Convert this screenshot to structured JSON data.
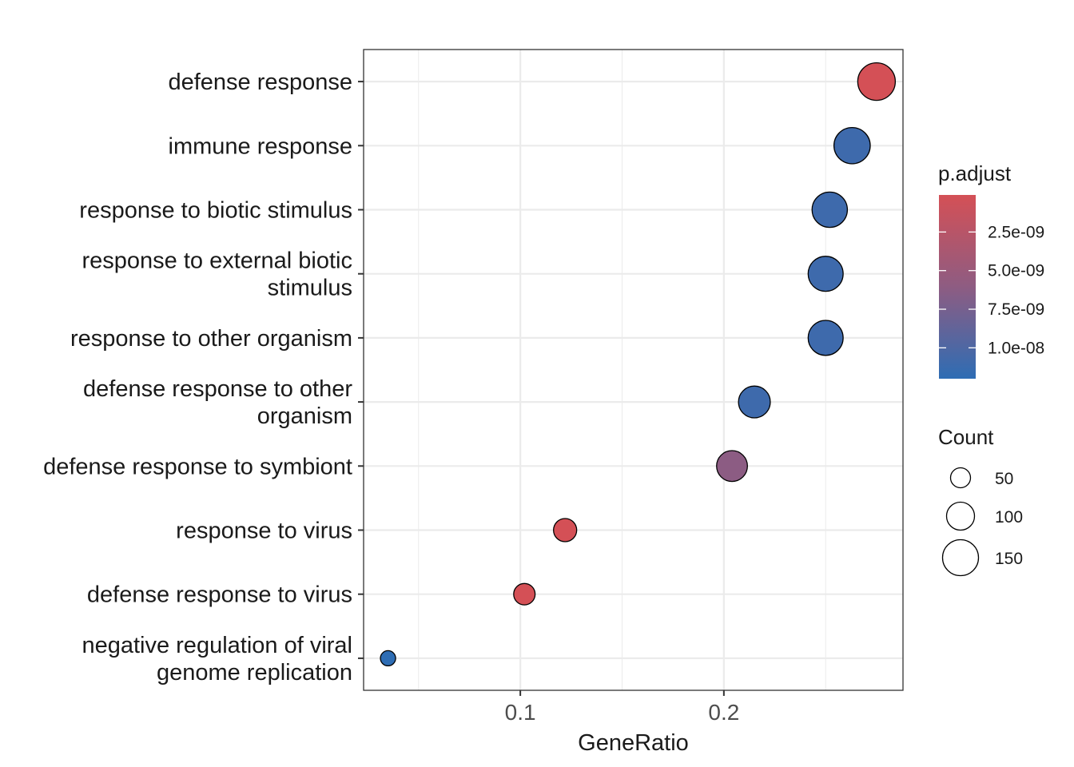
{
  "chart_data": {
    "type": "scatter",
    "xlabel": "GeneRatio",
    "ylabel": "",
    "xlim": [
      0.023,
      0.288
    ],
    "x_ticks": [
      0.1,
      0.2
    ],
    "x_tick_labels": [
      "0.1",
      "0.2"
    ],
    "x_minor_ticks": [
      0.05,
      0.15,
      0.25
    ],
    "grid": true,
    "points": [
      {
        "label": [
          "defense response"
        ],
        "x": 0.275,
        "count": 160,
        "p_adjust": 1e-10
      },
      {
        "label": [
          "immune response"
        ],
        "x": 0.263,
        "count": 152,
        "p_adjust": 1.1e-08
      },
      {
        "label": [
          "response to biotic stimulus"
        ],
        "x": 0.252,
        "count": 146,
        "p_adjust": 1.1e-08
      },
      {
        "label": [
          "response to external biotic",
          "stimulus"
        ],
        "x": 0.25,
        "count": 144,
        "p_adjust": 1.1e-08
      },
      {
        "label": [
          "response to other organism"
        ],
        "x": 0.25,
        "count": 144,
        "p_adjust": 1.1e-08
      },
      {
        "label": [
          "defense response to other",
          "organism"
        ],
        "x": 0.215,
        "count": 124,
        "p_adjust": 1.1e-08
      },
      {
        "label": [
          "defense response to symbiont"
        ],
        "x": 0.204,
        "count": 118,
        "p_adjust": 6.2e-09
      },
      {
        "label": [
          "response to virus"
        ],
        "x": 0.122,
        "count": 70,
        "p_adjust": 1e-10
      },
      {
        "label": [
          "defense response to virus"
        ],
        "x": 0.102,
        "count": 59,
        "p_adjust": 1e-10
      },
      {
        "label": [
          "negative regulation of viral",
          "genome replication"
        ],
        "x": 0.035,
        "count": 20,
        "p_adjust": 1.2e-08
      }
    ],
    "legend_placement": "right",
    "color_legend": {
      "title": "p.adjust",
      "range": [
        1e-10,
        1.2e-08
      ],
      "low_color": "#d45056",
      "high_color": "#2e6db4",
      "ticks": [
        2.5e-09,
        5e-09,
        7.5e-09,
        1e-08
      ],
      "tick_labels": [
        "2.5e-09",
        "5.0e-09",
        "7.5e-09",
        "1.0e-08"
      ]
    },
    "size_legend": {
      "title": "Count",
      "values": [
        50,
        100,
        150
      ],
      "labels": [
        "50",
        "100",
        "150"
      ]
    }
  }
}
